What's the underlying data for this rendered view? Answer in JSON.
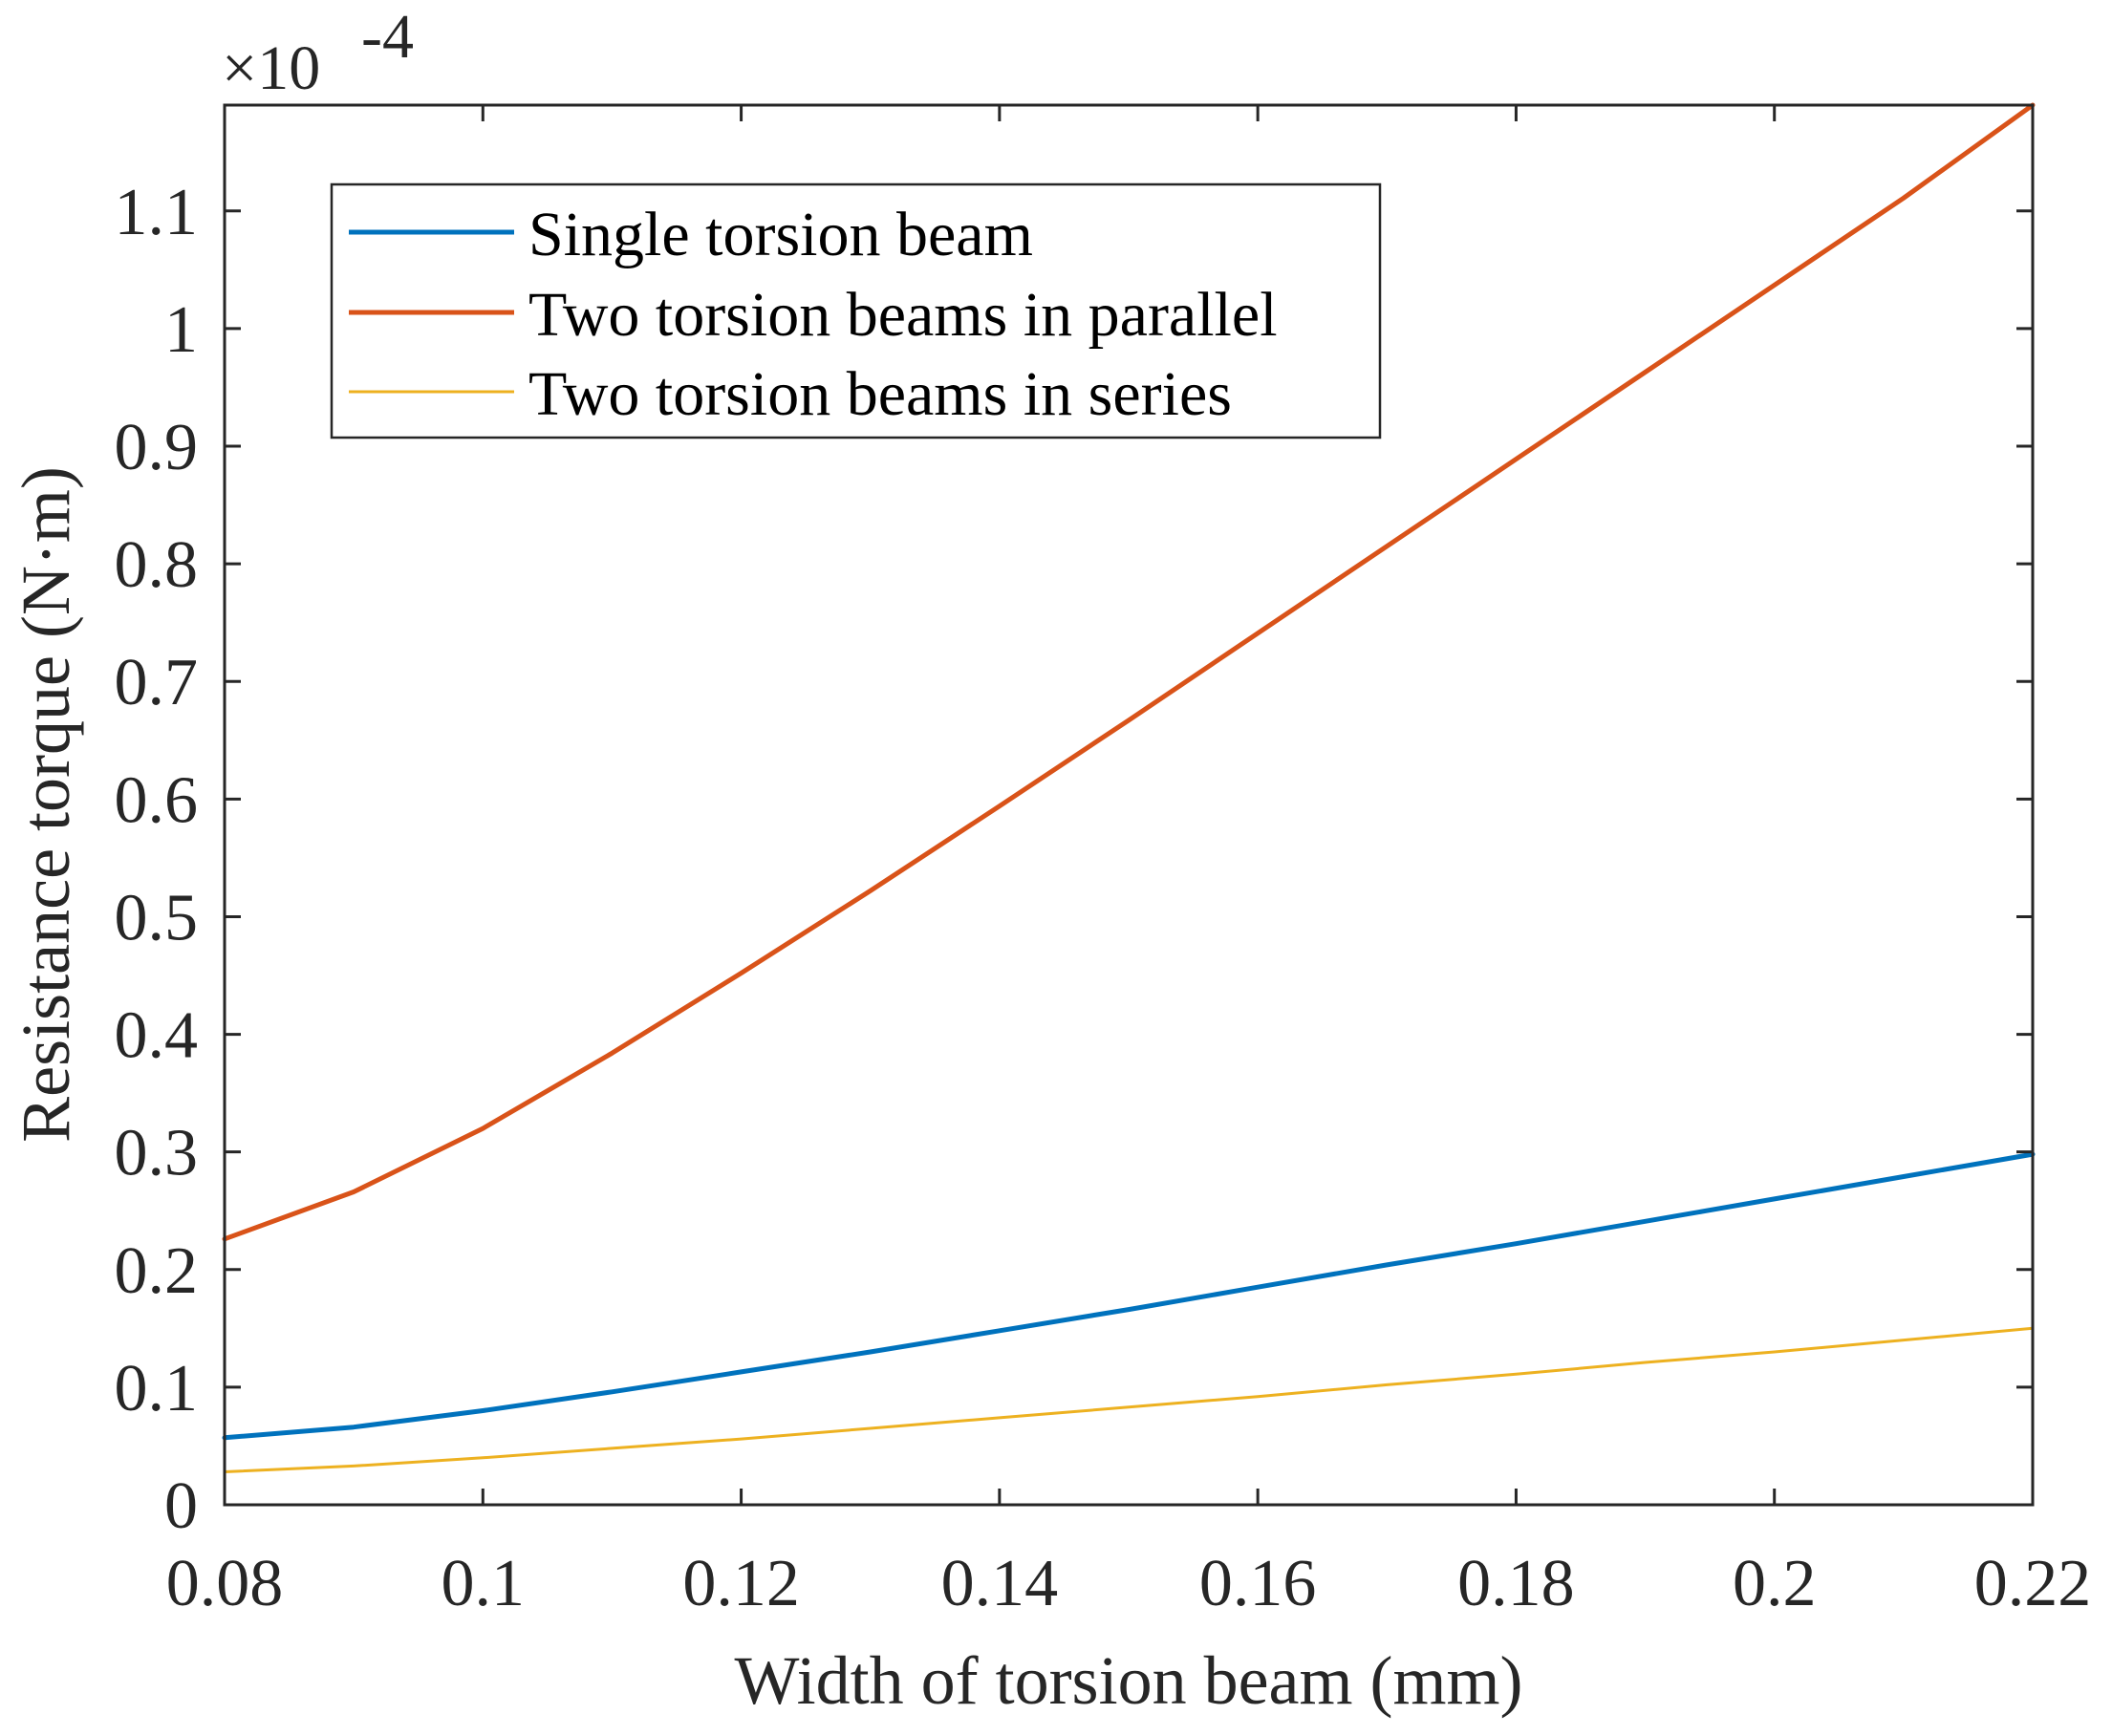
{
  "chart_data": {
    "type": "line",
    "xlabel": "Width of torsion beam (mm)",
    "ylabel": "Resistance torque (N·m)",
    "y_exponent": {
      "base": "×10",
      "power": "-4"
    },
    "xlim": [
      0.08,
      0.22
    ],
    "ylim": [
      0,
      1.19
    ],
    "grid": false,
    "legend_position": "top-left",
    "x_ticks": [
      0.08,
      0.1,
      0.12,
      0.14,
      0.16,
      0.18,
      0.2,
      0.22
    ],
    "x_tick_labels": [
      "0.08",
      "0.1",
      "0.12",
      "0.14",
      "0.16",
      "0.18",
      "0.2",
      "0.22"
    ],
    "y_ticks": [
      0,
      0.1,
      0.2,
      0.3,
      0.4,
      0.5,
      0.6,
      0.7,
      0.8,
      0.9,
      1,
      1.1
    ],
    "y_tick_labels": [
      "0",
      "0.1",
      "0.2",
      "0.3",
      "0.4",
      "0.5",
      "0.6",
      "0.7",
      "0.8",
      "0.9",
      "1",
      "1.1"
    ],
    "x": [
      0.08,
      0.09,
      0.1,
      0.11,
      0.12,
      0.13,
      0.14,
      0.15,
      0.16,
      0.17,
      0.18,
      0.19,
      0.2,
      0.21,
      0.22
    ],
    "series": [
      {
        "name": "Single torsion beam",
        "color": "#0072BD",
        "values": [
          0.057,
          0.066,
          0.08,
          0.096,
          0.113,
          0.13,
          0.148,
          0.166,
          0.185,
          0.204,
          0.222,
          0.241,
          0.26,
          0.279,
          0.298
        ]
      },
      {
        "name": "Two torsion beams in parallel",
        "color": "#D95319",
        "values": [
          0.226,
          0.266,
          0.32,
          0.384,
          0.452,
          0.522,
          0.594,
          0.667,
          0.741,
          0.815,
          0.889,
          0.963,
          1.037,
          1.111,
          1.19
        ]
      },
      {
        "name": "Two torsion beams in series",
        "color": "#EDB120",
        "values": [
          0.028,
          0.033,
          0.04,
          0.048,
          0.056,
          0.065,
          0.074,
          0.083,
          0.092,
          0.102,
          0.111,
          0.121,
          0.13,
          0.14,
          0.15
        ]
      }
    ]
  }
}
